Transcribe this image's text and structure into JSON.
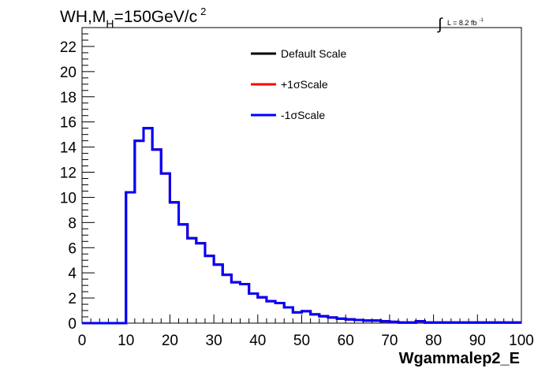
{
  "chart_data": {
    "type": "line",
    "title": {
      "main": "WH,M",
      "sub": "H",
      "rest": "=150GeV/c",
      "sup": "2"
    },
    "lumi": {
      "integral": "∫",
      "text": "L = 8.2 fb",
      "sup": "-1"
    },
    "xlabel": "Wgammalep2_E",
    "ylabel": "",
    "xlim": [
      0,
      100
    ],
    "ylim": [
      0,
      23.5
    ],
    "xticks": [
      0,
      10,
      20,
      30,
      40,
      50,
      60,
      70,
      80,
      90,
      100
    ],
    "yticks": [
      0,
      2,
      4,
      6,
      8,
      10,
      12,
      14,
      16,
      18,
      20,
      22
    ],
    "bin_width": 2,
    "legend_position": "top-center",
    "series": [
      {
        "name": "Default Scale",
        "color": "#000000"
      },
      {
        "name": "+1σScale",
        "color": "#ff0000"
      },
      {
        "name": "-1σScale",
        "color": "#0000ff"
      }
    ],
    "values": [
      0,
      0,
      0,
      0,
      0,
      10.4,
      14.5,
      15.5,
      13.8,
      11.9,
      9.6,
      7.85,
      6.75,
      6.35,
      5.35,
      4.65,
      3.85,
      3.25,
      3.1,
      2.35,
      2.05,
      1.75,
      1.6,
      1.25,
      0.85,
      0.95,
      0.7,
      0.55,
      0.45,
      0.35,
      0.3,
      0.25,
      0.2,
      0.2,
      0.15,
      0.1,
      0.05,
      0.05,
      0.15,
      0.05,
      0.05,
      0.05,
      0.05,
      0.05,
      0.05,
      0.05,
      0.05,
      0.05,
      0.05,
      0.05
    ]
  }
}
